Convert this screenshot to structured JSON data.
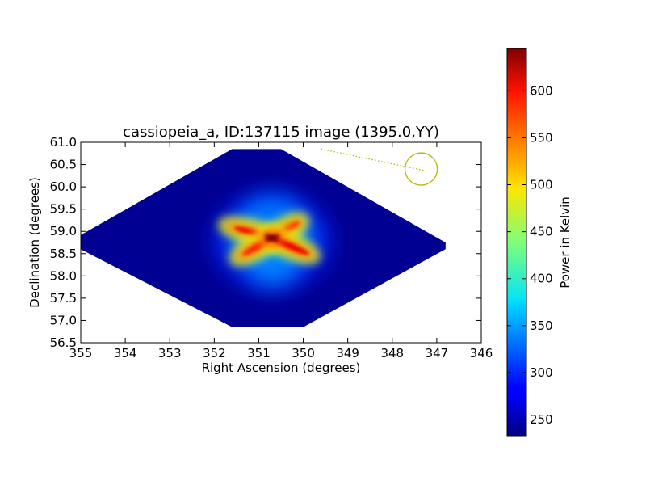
{
  "chart_data": {
    "type": "heatmap",
    "title": "cassiopeia_a, ID:137115 image (1395.0,YY)",
    "xlabel": "Right Ascension (degrees)",
    "ylabel": "Declination (degrees)",
    "xlim": [
      355,
      346
    ],
    "ylim": [
      56.5,
      61.0
    ],
    "x_ticks": [
      355,
      354,
      353,
      352,
      351,
      350,
      349,
      348,
      347,
      346
    ],
    "y_ticks": [
      56.5,
      57.0,
      57.5,
      58.0,
      58.5,
      59.0,
      59.5,
      60.0,
      60.5,
      61.0
    ],
    "colorbar": {
      "label": "Power in Kelvin",
      "min": 232,
      "max": 645,
      "ticks": [
        250,
        300,
        350,
        400,
        450,
        500,
        550,
        600
      ],
      "colormap": "jet"
    },
    "field_outline": [
      [
        350.5,
        60.85
      ],
      [
        346.8,
        58.75
      ],
      [
        346.8,
        58.6
      ],
      [
        350.0,
        56.85
      ],
      [
        351.6,
        56.85
      ],
      [
        355.3,
        58.75
      ],
      [
        351.6,
        60.85
      ]
    ],
    "background_level": 240,
    "features": [
      {
        "name": "center",
        "ra": 350.7,
        "dec": 58.85,
        "peak": 645
      },
      {
        "name": "arm-upper-left",
        "ra": 351.6,
        "dec": 59.1,
        "peak": 600
      },
      {
        "name": "arm-upper-right",
        "ra": 350.1,
        "dec": 59.2,
        "peak": 570
      },
      {
        "name": "arm-lower-left",
        "ra": 351.4,
        "dec": 58.45,
        "peak": 580
      },
      {
        "name": "arm-lower-right",
        "ra": 349.9,
        "dec": 58.5,
        "peak": 600
      }
    ],
    "annotations": {
      "circle": {
        "ra": 347.35,
        "dec": 60.4
      },
      "dotted_line": {
        "from": [
          349.6,
          60.85
        ],
        "to": [
          347.2,
          60.35
        ]
      }
    },
    "colors": {
      "annotation": "#b8b800",
      "background": "#ffffff",
      "axes": "#000000"
    }
  }
}
